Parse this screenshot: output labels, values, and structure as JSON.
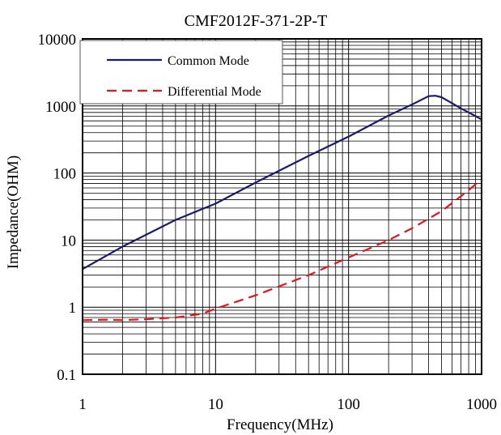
{
  "chart_data": {
    "type": "line",
    "title": "CMF2012F-371-2P-T",
    "xlabel": "Frequency(MHz)",
    "ylabel": "Impedance(OHM)",
    "x_scale": "log",
    "y_scale": "log",
    "xlim": [
      1,
      1000
    ],
    "ylim": [
      0.1,
      10000
    ],
    "x_ticks": [
      {
        "value": 1,
        "label": "1"
      },
      {
        "value": 10,
        "label": "10"
      },
      {
        "value": 100,
        "label": "100"
      },
      {
        "value": 1000,
        "label": "1000"
      }
    ],
    "y_ticks": [
      {
        "value": 0.1,
        "label": "0.1"
      },
      {
        "value": 1,
        "label": "1"
      },
      {
        "value": 10,
        "label": "10"
      },
      {
        "value": 100,
        "label": "100"
      },
      {
        "value": 1000,
        "label": "1000"
      },
      {
        "value": 10000,
        "label": "10000"
      }
    ],
    "grid": true,
    "legend_position": "top-left",
    "series": [
      {
        "name": "Common Mode",
        "color": "#1a1a6e",
        "style": "solid",
        "x": [
          1,
          2,
          5,
          10,
          20,
          50,
          100,
          200,
          300,
          400,
          450,
          500,
          600,
          700,
          800,
          1000
        ],
        "y": [
          3.7,
          8,
          20,
          35,
          72,
          180,
          350,
          720,
          1050,
          1400,
          1420,
          1350,
          1100,
          920,
          800,
          630
        ]
      },
      {
        "name": "Differential Mode",
        "color": "#e8141b",
        "style": "dashed",
        "x": [
          1,
          1.5,
          2,
          3,
          5,
          8,
          10,
          20,
          50,
          100,
          200,
          300,
          500,
          700,
          1000
        ],
        "y": [
          0.64,
          0.65,
          0.64,
          0.66,
          0.7,
          0.8,
          0.95,
          1.5,
          3,
          5.5,
          10,
          15,
          27,
          45,
          80
        ]
      }
    ]
  }
}
